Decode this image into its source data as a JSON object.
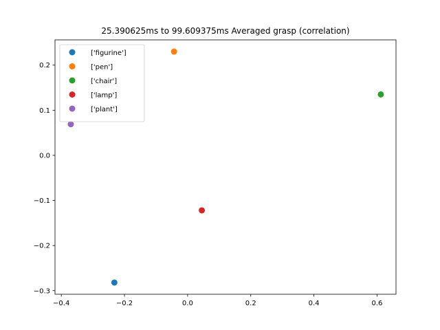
{
  "chart_data": {
    "type": "scatter",
    "title": "25.390625ms to 99.609375ms Averaged grasp (correlation)",
    "xlabel": "",
    "ylabel": "",
    "xlim": [
      -0.42,
      0.66
    ],
    "ylim": [
      -0.308,
      0.256
    ],
    "xticks": [
      -0.4,
      -0.2,
      0.0,
      0.2,
      0.4,
      0.6
    ],
    "xtick_labels": [
      "−0.4",
      "−0.2",
      "0.0",
      "0.2",
      "0.4",
      "0.6"
    ],
    "yticks": [
      -0.3,
      -0.2,
      -0.1,
      0.0,
      0.1,
      0.2
    ],
    "ytick_labels": [
      "−0.3",
      "−0.2",
      "−0.1",
      "0.0",
      "0.1",
      "0.2"
    ],
    "grid": false,
    "legend_position": "top-left",
    "series": [
      {
        "name": "['figurine']",
        "color": "#1f77b4",
        "x": [
          -0.232
        ],
        "y": [
          -0.282
        ]
      },
      {
        "name": "['pen']",
        "color": "#ff7f0e",
        "x": [
          -0.043
        ],
        "y": [
          0.23
        ]
      },
      {
        "name": "['chair']",
        "color": "#2ca02c",
        "x": [
          0.612
        ],
        "y": [
          0.135
        ]
      },
      {
        "name": "['lamp']",
        "color": "#d62728",
        "x": [
          0.045
        ],
        "y": [
          -0.122
        ]
      },
      {
        "name": "['plant']",
        "color": "#9467bd",
        "x": [
          -0.37
        ],
        "y": [
          0.069
        ]
      }
    ]
  }
}
